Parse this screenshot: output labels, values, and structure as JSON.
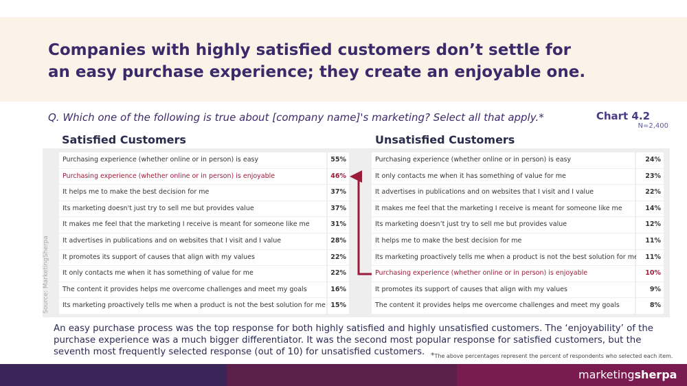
{
  "header": {
    "title_lines": [
      "Companies with highly satisfied customers don’t settle for",
      "an easy purchase experience; they create an enjoyable one."
    ]
  },
  "question": "Q. Which one of the following is true about [company name]'s marketing? Select all that apply.*",
  "chart_label": "Chart 4.2",
  "sample": "N=2,400",
  "source": "Source: MarketingSherpa",
  "tables": [
    {
      "heading": "Satisfied Customers",
      "highlight": 1,
      "rows": [
        [
          "Purchasing experience (whether online or in person) is easy",
          "55%"
        ],
        [
          "Purchasing experience (whether online or in person) is enjoyable",
          "46%"
        ],
        [
          "It helps me to make the best decision for me",
          "37%"
        ],
        [
          "Its marketing doesn't just try to sell me but provides value",
          "37%"
        ],
        [
          "It makes me feel that the marketing I receive is meant for someone like me",
          "31%"
        ],
        [
          "It advertises in publications and on websites that I visit and I value",
          "28%"
        ],
        [
          "It promotes its support of causes that align with my values",
          "22%"
        ],
        [
          "It only contacts me when it has something of value for me",
          "22%"
        ],
        [
          "The content it provides helps me overcome challenges and meet my goals",
          "16%"
        ],
        [
          "Its marketing proactively tells me when a product is not the best solution for me",
          "15%"
        ]
      ]
    },
    {
      "heading": "Unsatisfied Customers",
      "highlight": 7,
      "rows": [
        [
          "Purchasing experience (whether online or in person) is easy",
          "24%"
        ],
        [
          "It only contacts me when it has something of value for me",
          "23%"
        ],
        [
          "It advertises in publications and on websites that I visit and I value",
          "22%"
        ],
        [
          "It makes me feel that the marketing I receive is meant for someone like me",
          "14%"
        ],
        [
          "Its marketing doesn’t just try to sell me but provides value",
          "12%"
        ],
        [
          "It helps me to make the best decision for me",
          "11%"
        ],
        [
          "Its marketing proactively tells me when a product is not the best solution for me",
          "11%"
        ],
        [
          "Purchasing experience (whether online or in person) is enjoyable",
          "10%"
        ],
        [
          "It promotes its support of causes that align with my values",
          "9%"
        ],
        [
          "The content it provides helps me overcome challenges and meet my goals",
          "8%"
        ]
      ]
    }
  ],
  "summary": "An easy purchase process was the top response for both highly satisfied and highly unsatisfied customers. The ‘enjoyability’ of the purchase experience was a much bigger differentiator. It was the second most popular response for satisfied customers, but the seventh most frequently selected response (out of 10) for unsatisfied customers.",
  "footnote_mark": "*",
  "footnote": "The above percentages represent the percent of respondents who selected each item.",
  "logo": {
    "left": "marketing",
    "right": "sherpa"
  }
}
